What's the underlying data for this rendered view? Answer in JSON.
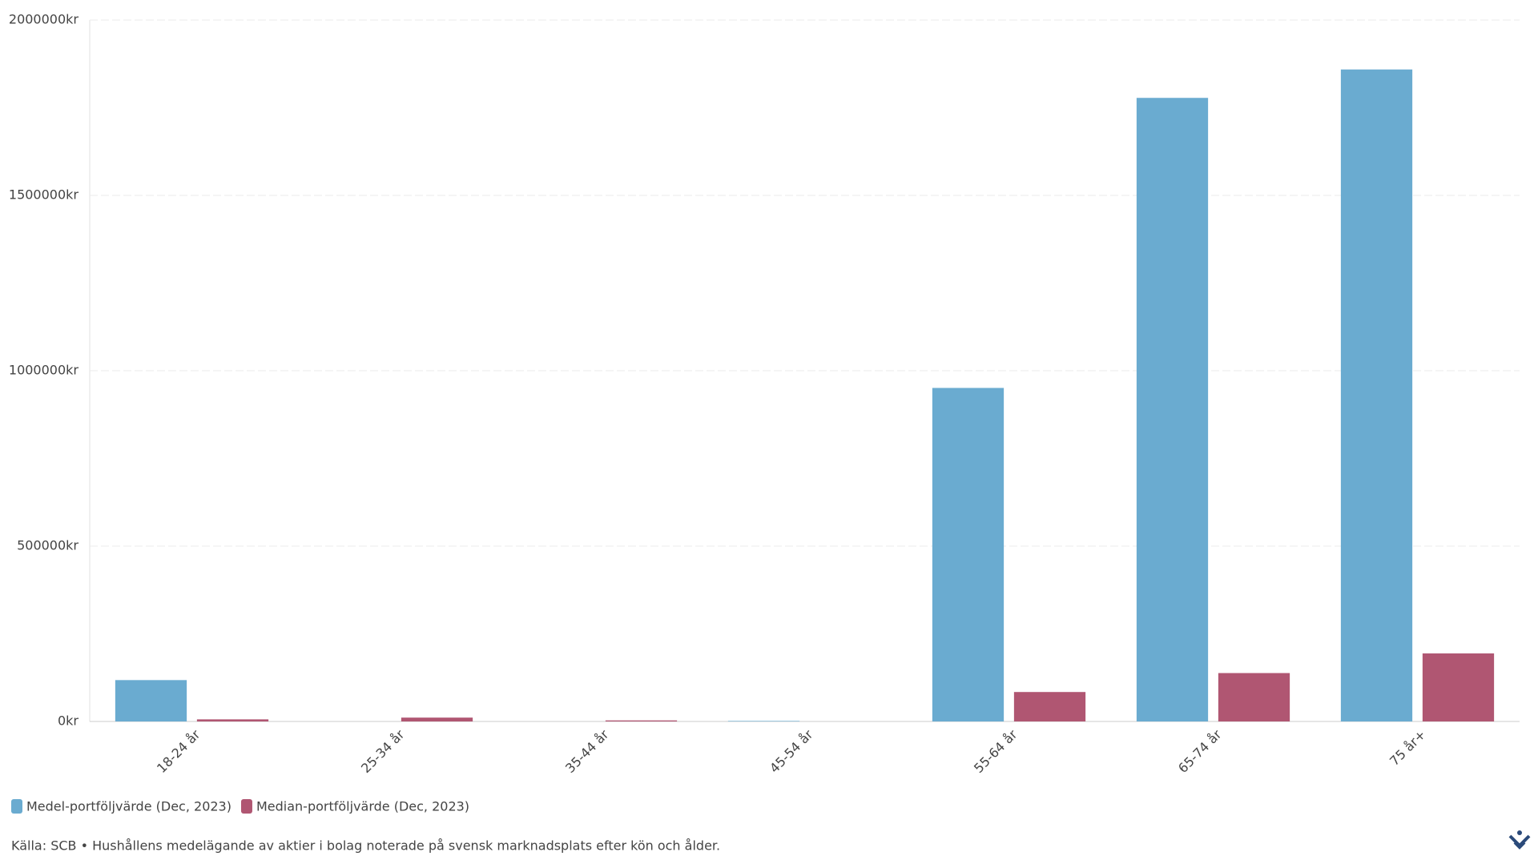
{
  "chart_data": {
    "type": "bar",
    "categories": [
      "18-24 år",
      "25-34 år",
      "35-44 år",
      "45-54 år",
      "55-64 år",
      "65-74 år",
      "75 år+"
    ],
    "series": [
      {
        "name": "Medel-portföljvärde (Dec, 2023)",
        "color": "#6aabd0",
        "values": [
          118000,
          0,
          0,
          1500,
          951000,
          1778000,
          1859000
        ]
      },
      {
        "name": "Median-portföljvärde (Dec, 2023)",
        "color": "#b05672",
        "values": [
          6000,
          11000,
          3000,
          0,
          84000,
          138000,
          194000
        ]
      }
    ],
    "ylim": [
      0,
      2000000
    ],
    "yticks": [
      {
        "value": 0,
        "label": "0kr"
      },
      {
        "value": 500000,
        "label": "500000kr"
      },
      {
        "value": 1000000,
        "label": "1000000kr"
      },
      {
        "value": 1500000,
        "label": "1500000kr"
      },
      {
        "value": 2000000,
        "label": "2000000kr"
      }
    ],
    "grid": true,
    "source": "Källa: SCB • Hushållens medelägande av aktier i bolag noterade på svensk marknadsplats efter kön och ålder."
  }
}
